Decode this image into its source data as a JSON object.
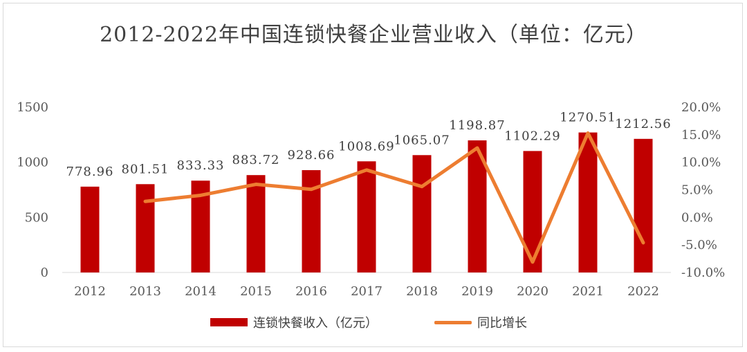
{
  "chart_data": {
    "type": "bar",
    "title": "2012-2022年中国连锁快餐企业营业收入（单位：亿元）",
    "categories": [
      "2012",
      "2013",
      "2014",
      "2015",
      "2016",
      "2017",
      "2018",
      "2019",
      "2020",
      "2021",
      "2022"
    ],
    "series": [
      {
        "name": "连锁快餐收入（亿元）",
        "type": "bar",
        "axis": "left",
        "values": [
          778.96,
          801.51,
          833.33,
          883.72,
          928.66,
          1008.69,
          1065.07,
          1198.87,
          1102.29,
          1270.51,
          1212.56
        ],
        "labels": [
          "778.96",
          "801.51",
          "833.33",
          "883.72",
          "928.66",
          "1008.69",
          "1065.07",
          "1198.87",
          "1102.29",
          "1270.51",
          "1212.56"
        ],
        "color": "#c00000"
      },
      {
        "name": "同比增长",
        "type": "line",
        "axis": "right",
        "values": [
          null,
          2.9,
          4.0,
          6.0,
          5.1,
          8.6,
          5.6,
          12.6,
          -8.1,
          15.3,
          -4.6
        ],
        "color": "#ed7d31"
      }
    ],
    "y_left": {
      "min": 0,
      "max": 1500,
      "ticks": [
        0,
        500,
        1000,
        1500
      ],
      "tick_labels": [
        "0",
        "500",
        "1000",
        "1500"
      ]
    },
    "y_right": {
      "min": -10,
      "max": 20,
      "ticks": [
        -10,
        -5,
        0,
        5,
        10,
        15,
        20
      ],
      "tick_labels": [
        "-10.0%",
        "-5.0%",
        "0.0%",
        "5.0%",
        "10.0%",
        "15.0%",
        "20.0%"
      ]
    },
    "grid": false,
    "legend_position": "bottom"
  }
}
